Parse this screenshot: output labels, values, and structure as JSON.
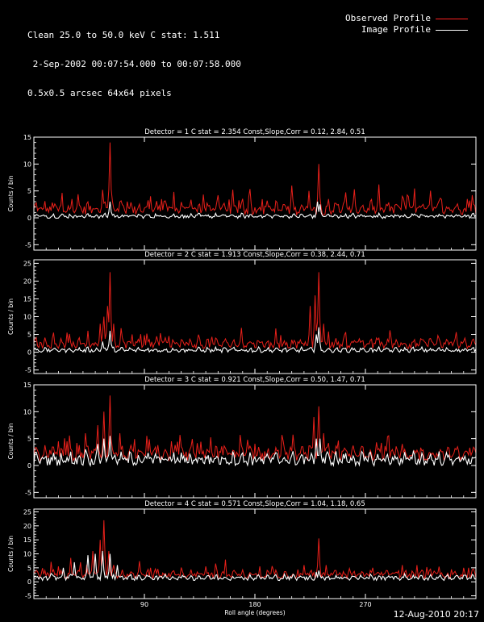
{
  "header": {
    "line1": "Clean 25.0 to 50.0 keV C stat: 1.511",
    "line2": " 2-Sep-2002 00:07:54.000 to 00:07:58.000",
    "line3": "0.5x0.5 arcsec 64x64 pixels"
  },
  "legend": [
    {
      "label": "Observed Profile",
      "color": "#ff2020"
    },
    {
      "label": "Image Profile",
      "color": "#ffffff"
    }
  ],
  "footer": {
    "timestamp": "12-Aug-2010 20:17"
  },
  "colors": {
    "observed": "#e8201a",
    "image": "#ffffff",
    "axes": "#ffffff",
    "background": "#000000"
  },
  "chart_data": [
    {
      "type": "line",
      "title": "Detector = 1  C stat = 2.354  Const,Slope,Corr = 0.12, 2.84, 0.51",
      "xlabel": "",
      "ylabel": "Counts / bin",
      "xlim": [
        0,
        360
      ],
      "ylim": [
        -6,
        15
      ],
      "yticks": [
        -5,
        0,
        5,
        10,
        15
      ],
      "xticks": [
        90,
        180,
        270
      ],
      "show_xticklabels": false,
      "series": [
        {
          "name": "Observed Profile",
          "baseline": 1.4,
          "noise": 1.4,
          "peaks": [
            [
              17,
              2.6
            ],
            [
              31,
              3.5
            ],
            [
              56,
              5.2
            ],
            [
              62,
              14
            ],
            [
              95,
              4.0
            ],
            [
              150,
              4.2
            ],
            [
              210,
              6.0
            ],
            [
              224,
              5.0
            ],
            [
              232,
              10
            ],
            [
              240,
              3.5
            ],
            [
              300,
              4.0
            ],
            [
              355,
              3.2
            ]
          ]
        },
        {
          "name": "Image Profile",
          "baseline": 0.2,
          "noise": 0.5,
          "peaks": [
            [
              62,
              3.0
            ],
            [
              231,
              3.0
            ],
            [
              233,
              2.5
            ]
          ]
        }
      ]
    },
    {
      "type": "line",
      "title": "Detector = 2  C stat = 1.913  Const,Slope,Corr = 0.38, 2.44, 0.71",
      "xlabel": "",
      "ylabel": "Counts / bin",
      "xlim": [
        0,
        360
      ],
      "ylim": [
        -6,
        26
      ],
      "yticks": [
        -5,
        0,
        5,
        10,
        15,
        20,
        25
      ],
      "xticks": [
        90,
        180,
        270
      ],
      "show_xticklabels": false,
      "series": [
        {
          "name": "Observed Profile",
          "baseline": 2.0,
          "noise": 1.6,
          "peaks": [
            [
              16,
              5.5
            ],
            [
              44,
              6.0
            ],
            [
              54,
              8.0
            ],
            [
              57,
              10
            ],
            [
              60,
              13
            ],
            [
              62,
              22.5
            ],
            [
              65,
              8
            ],
            [
              80,
              5
            ],
            [
              225,
              13
            ],
            [
              229,
              16
            ],
            [
              232,
              22.5
            ],
            [
              236,
              8
            ]
          ]
        },
        {
          "name": "Image Profile",
          "baseline": 0.4,
          "noise": 0.8,
          "peaks": [
            [
              56,
              3
            ],
            [
              62,
              6
            ],
            [
              230,
              5
            ],
            [
              232,
              7
            ]
          ]
        }
      ]
    },
    {
      "type": "line",
      "title": "Detector = 3  C stat = 0.921  Const,Slope,Corr = 0.50, 1.47, 0.71",
      "xlabel": "",
      "ylabel": "Counts / bin",
      "xlim": [
        0,
        360
      ],
      "ylim": [
        -6,
        15
      ],
      "yticks": [
        -5,
        0,
        5,
        10,
        15
      ],
      "xticks": [
        90,
        180,
        270
      ],
      "show_xticklabels": false,
      "series": [
        {
          "name": "Observed Profile",
          "baseline": 1.8,
          "noise": 1.5,
          "peaks": [
            [
              20,
              4.5
            ],
            [
              42,
              6.0
            ],
            [
              52,
              7.5
            ],
            [
              57,
              10
            ],
            [
              62,
              13
            ],
            [
              70,
              6
            ],
            [
              92,
              5.5
            ],
            [
              112,
              4.5
            ],
            [
              228,
              9
            ],
            [
              232,
              11
            ],
            [
              236,
              6
            ],
            [
              300,
              4.0
            ],
            [
              345,
              3.5
            ]
          ]
        },
        {
          "name": "Image Profile",
          "baseline": 0.8,
          "noise": 1.4,
          "peaks": [
            [
              42,
              3
            ],
            [
              52,
              4
            ],
            [
              57,
              5
            ],
            [
              62,
              5.5
            ],
            [
              230,
              5
            ],
            [
              233,
              5
            ]
          ]
        }
      ]
    },
    {
      "type": "line",
      "title": "Detector = 4  C stat = 0.571  Const,Slope,Corr = 1.04, 1.18, 0.65",
      "xlabel": "Roll angle (degrees)",
      "ylabel": "Counts / bin",
      "xlim": [
        0,
        360
      ],
      "ylim": [
        -6,
        26
      ],
      "yticks": [
        -5,
        0,
        5,
        10,
        15,
        20,
        25
      ],
      "xticks": [
        90,
        180,
        270
      ],
      "show_xticklabels": true,
      "series": [
        {
          "name": "Observed Profile",
          "baseline": 2.2,
          "noise": 1.8,
          "peaks": [
            [
              20,
              5.5
            ],
            [
              38,
              7
            ],
            [
              48,
              11
            ],
            [
              54,
              15
            ],
            [
              57,
              22
            ],
            [
              61,
              11
            ],
            [
              65,
              6
            ],
            [
              95,
              5
            ],
            [
              140,
              5.5
            ],
            [
              220,
              6
            ],
            [
              232,
              15.5
            ],
            [
              238,
              6
            ],
            [
              300,
              6
            ],
            [
              350,
              5
            ]
          ]
        },
        {
          "name": "Image Profile",
          "baseline": 1.2,
          "noise": 1.2,
          "peaks": [
            [
              14,
              3
            ],
            [
              24,
              5
            ],
            [
              33,
              7
            ],
            [
              44,
              9.5
            ],
            [
              50,
              10
            ],
            [
              56,
              11
            ],
            [
              62,
              10
            ],
            [
              68,
              6
            ],
            [
              230,
              3.5
            ],
            [
              232,
              4
            ]
          ]
        }
      ]
    }
  ]
}
